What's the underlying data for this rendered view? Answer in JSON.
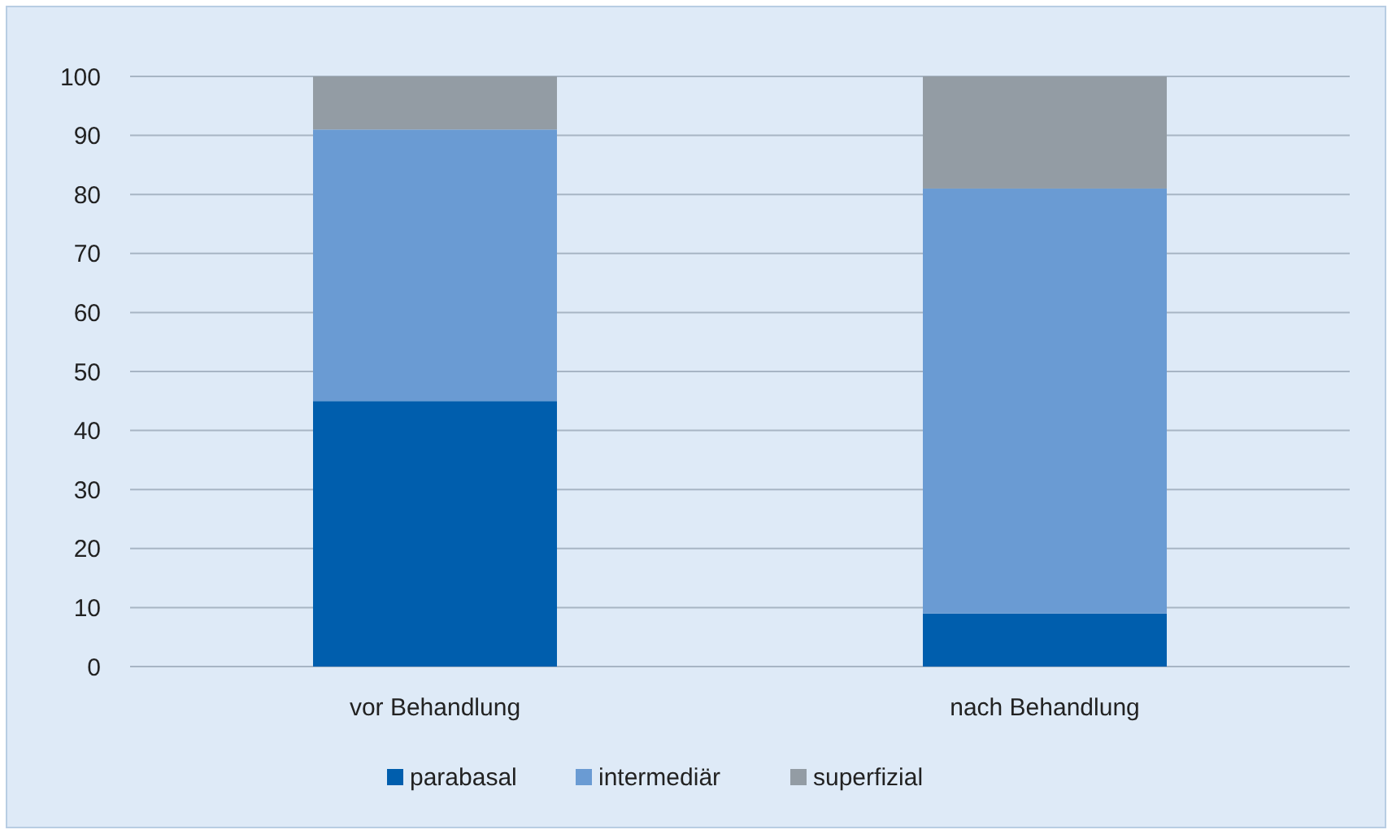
{
  "chart_data": {
    "type": "bar",
    "stacked": true,
    "categories": [
      "vor Behandlung",
      "nach Behandlung"
    ],
    "series": [
      {
        "name": "parabasal",
        "color": "#005ead",
        "values": [
          45,
          9
        ]
      },
      {
        "name": "intermediär",
        "color": "#6a9bd3",
        "values": [
          46,
          72
        ]
      },
      {
        "name": "superfizial",
        "color": "#939ca4",
        "values": [
          9,
          19
        ]
      }
    ],
    "ylim": [
      0,
      100
    ],
    "yticks": [
      0,
      10,
      20,
      30,
      40,
      50,
      60,
      70,
      80,
      90,
      100
    ],
    "grid": "y",
    "legend": "bottom"
  }
}
